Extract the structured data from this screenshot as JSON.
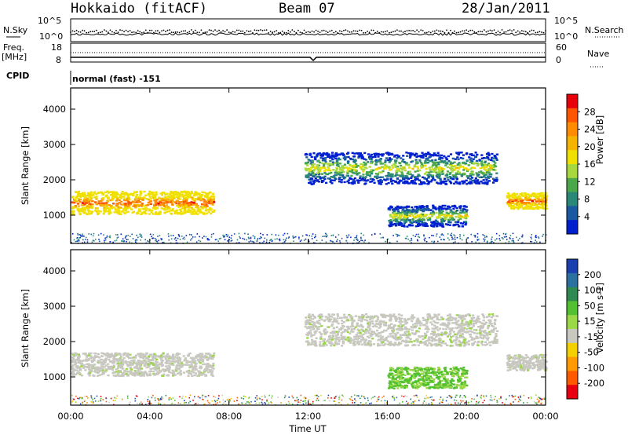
{
  "header": {
    "station": "Hokkaido (fitACF)",
    "beam": "Beam 07",
    "date": "28/Jan/2011"
  },
  "noise_panel": {
    "left_label": "N.Sky",
    "right_label": "N.Search",
    "left_ticks": [
      "10^5",
      "10^0"
    ],
    "right_ticks": [
      "10^5",
      "10^0"
    ]
  },
  "freq_panel": {
    "label_top": "Freq.",
    "label_unit": "[MHz]",
    "left_ticks": [
      "18",
      "8"
    ],
    "right_label": "Nave",
    "right_ticks": [
      "60",
      "0"
    ]
  },
  "cpid_panel": {
    "label": "CPID",
    "text": "normal (fast) -151"
  },
  "power_panel": {
    "ylabel": "Slant Range [km]",
    "colorbar_label": "Power [dB]",
    "colorbar_ticks": [
      "28",
      "24",
      "20",
      "16",
      "12",
      "8",
      "4"
    ],
    "colorbar_colors": [
      "#e8000b",
      "#ff5500",
      "#ff8c00",
      "#f5b400",
      "#f0e000",
      "#a8d840",
      "#4aa84a",
      "#2a8878",
      "#1a5aa0",
      "#0020d0"
    ]
  },
  "velocity_panel": {
    "ylabel": "Velocity [m s-1]",
    "ylabel_left": "Slant Range [km]",
    "colorbar_ticks": [
      "200",
      "100",
      "50",
      "15",
      "-15",
      "-50",
      "-100",
      "-200"
    ],
    "colorbar_colors": [
      "#1a40b0",
      "#2a70a0",
      "#2e8a50",
      "#52c030",
      "#9ad848",
      "#c8c8c0",
      "#f4d000",
      "#ff9a00",
      "#ff5a00",
      "#e80010"
    ]
  },
  "chart_data": {
    "type": "heatmap",
    "title": "Hokkaido (fitACF) Beam 07 28/Jan/2011",
    "xlabel": "Time UT",
    "ylabel": "Slant Range [km]",
    "x_ticks": [
      "00:00",
      "04:00",
      "08:00",
      "12:00",
      "16:00",
      "20:00",
      "00:00"
    ],
    "y_ticks": [
      1000,
      2000,
      3000,
      4000
    ],
    "xlim_hours": [
      0,
      24
    ],
    "ylim_km": [
      200,
      4600
    ],
    "scatter_regions": [
      {
        "name": "A",
        "t_start": 0.0,
        "t_end": 7.2,
        "range_min": 1050,
        "range_max": 1700,
        "power_db": 26,
        "velocity": 0
      },
      {
        "name": "B",
        "t_start": 11.8,
        "t_end": 21.5,
        "range_min": 1900,
        "range_max": 2800,
        "power_db": 14,
        "velocity": 0
      },
      {
        "name": "C",
        "t_start": 16.0,
        "t_end": 20.0,
        "range_min": 700,
        "range_max": 1300,
        "power_db": 14,
        "velocity": 40
      },
      {
        "name": "D",
        "t_start": 22.0,
        "t_end": 24.0,
        "range_min": 1200,
        "range_max": 1650,
        "power_db": 26,
        "velocity": 0
      }
    ]
  }
}
